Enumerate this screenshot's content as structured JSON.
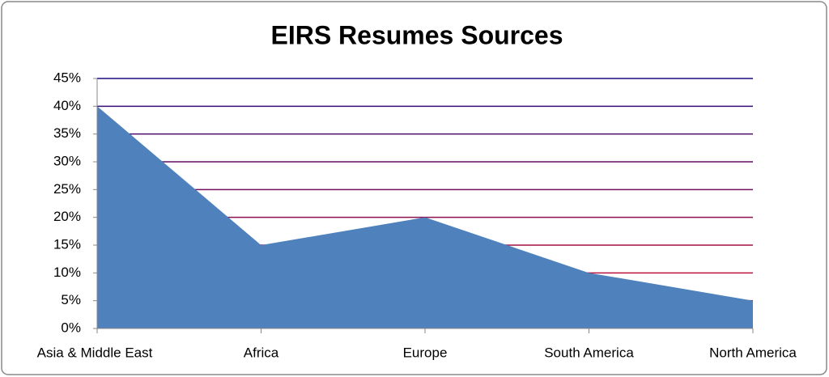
{
  "chart_data": {
    "type": "area",
    "title": "EIRS Resumes Sources",
    "categories": [
      "Asia & Middle East",
      "Africa",
      "Europe",
      "South America",
      "North America"
    ],
    "values": [
      40,
      15,
      20,
      10,
      5
    ],
    "color": "#4f81bd",
    "ylim": [
      0,
      45
    ],
    "yticks": [
      {
        "value": 0,
        "label": "0%"
      },
      {
        "value": 5,
        "label": "5%"
      },
      {
        "value": 10,
        "label": "10%"
      },
      {
        "value": 15,
        "label": "15%"
      },
      {
        "value": 20,
        "label": "20%"
      },
      {
        "value": 25,
        "label": "25%"
      },
      {
        "value": 30,
        "label": "30%"
      },
      {
        "value": 35,
        "label": "35%"
      },
      {
        "value": 40,
        "label": "40%"
      },
      {
        "value": 45,
        "label": "45%"
      }
    ],
    "grid": true
  }
}
